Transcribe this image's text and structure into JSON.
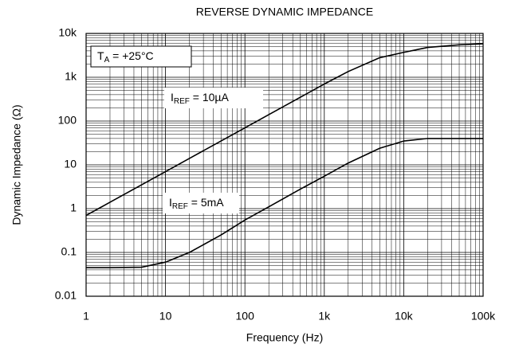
{
  "chart_data": {
    "type": "line",
    "title": "REVERSE DYNAMIC IMPEDANCE",
    "x_label": "Frequency (Hz)",
    "y_label": "Dynamic Impedance (Ω)",
    "x": [
      1,
      2,
      5,
      10,
      20,
      50,
      100,
      200,
      500,
      1000,
      2000,
      5000,
      10000,
      20000,
      50000,
      100000
    ],
    "series": [
      {
        "name_parts": [
          "I",
          "REF",
          " = 10µA"
        ],
        "color": "#000000",
        "values": [
          0.7,
          1.4,
          3.5,
          7,
          14,
          35,
          70,
          140,
          350,
          700,
          1350,
          2800,
          3700,
          4800,
          5500,
          5800
        ]
      },
      {
        "name_parts": [
          "I",
          "REF",
          " = 5mA"
        ],
        "color": "#000000",
        "values": [
          0.045,
          0.045,
          0.046,
          0.06,
          0.1,
          0.25,
          0.55,
          1.1,
          2.8,
          5.5,
          11,
          24,
          35,
          40,
          40,
          40
        ]
      }
    ],
    "annotation_parts": [
      "T",
      "A",
      " = +25°C"
    ],
    "x_log": true,
    "y_log": true,
    "xlim": [
      1,
      100000
    ],
    "ylim": [
      0.01,
      10000
    ],
    "xticks": [
      1,
      10,
      100,
      {
        "value": 1000,
        "label": "1k"
      },
      {
        "value": 10000,
        "label": "10k"
      },
      {
        "value": 100000,
        "label": "100k"
      }
    ],
    "yticks": [
      0.01,
      0.1,
      1,
      10,
      100,
      {
        "value": 1000,
        "label": "1k"
      },
      {
        "value": 10000,
        "label": "10k"
      }
    ],
    "grid": true,
    "minor_grid": true
  }
}
